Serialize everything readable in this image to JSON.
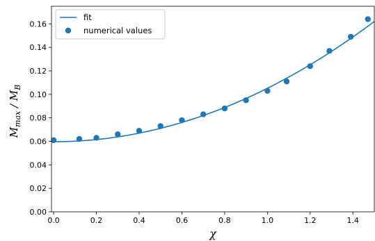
{
  "chart_data": {
    "type": "scatter",
    "xlabel": "χ",
    "ylabel": {
      "base": "M",
      "sub1": "max",
      "sep": " / ",
      "base2": "M",
      "sub2": "B"
    },
    "xlim": [
      -0.01,
      1.5
    ],
    "ylim": [
      0.0,
      0.175
    ],
    "xticks": [
      0.0,
      0.2,
      0.4,
      0.6,
      0.8,
      1.0,
      1.2,
      1.4
    ],
    "xtick_labels": [
      "0.0",
      "0.2",
      "0.4",
      "0.6",
      "0.8",
      "1.0",
      "1.2",
      "1.4"
    ],
    "yticks": [
      0.0,
      0.02,
      0.04,
      0.06,
      0.08,
      0.1,
      0.12,
      0.14,
      0.16
    ],
    "ytick_labels": [
      "0.00",
      "0.02",
      "0.04",
      "0.06",
      "0.08",
      "0.10",
      "0.12",
      "0.14",
      "0.16"
    ],
    "grid": false,
    "legend_position": "top-left",
    "color": "#1f77b4",
    "series": [
      {
        "name": "fit",
        "kind": "line",
        "model": "quadratic",
        "coefficients": {
          "a": 0.0597,
          "b": 0.0,
          "c": 0.0455
        },
        "x_range": [
          -0.01,
          1.5
        ]
      },
      {
        "name": "numerical values",
        "kind": "scatter",
        "x": [
          0.0,
          0.12,
          0.2,
          0.3,
          0.4,
          0.5,
          0.6,
          0.7,
          0.8,
          0.9,
          1.0,
          1.09,
          1.2,
          1.29,
          1.39,
          1.47
        ],
        "y": [
          0.061,
          0.062,
          0.063,
          0.066,
          0.069,
          0.073,
          0.078,
          0.083,
          0.088,
          0.095,
          0.103,
          0.111,
          0.124,
          0.137,
          0.149,
          0.164
        ]
      }
    ]
  }
}
